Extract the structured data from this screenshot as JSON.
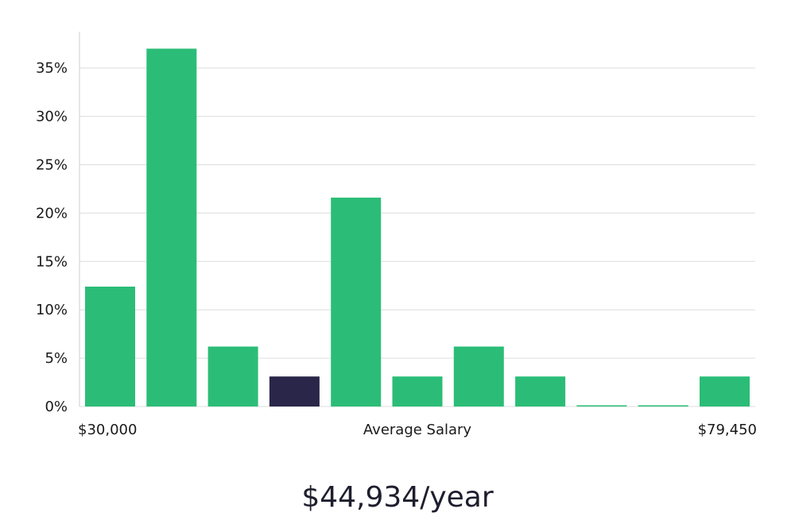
{
  "chart_data": {
    "type": "bar",
    "title": "",
    "xlabel": "Average Salary",
    "ylabel": "",
    "x_range_labels": {
      "min": "$30,000",
      "max": "$79,450"
    },
    "ylim": [
      0,
      37
    ],
    "yticks": [
      "0%",
      "5%",
      "10%",
      "15%",
      "20%",
      "25%",
      "30%",
      "35%"
    ],
    "ytick_values": [
      0,
      5,
      10,
      15,
      20,
      25,
      30,
      35
    ],
    "values": [
      12.4,
      37,
      6.2,
      3.1,
      21.6,
      3.1,
      6.2,
      3.1,
      0,
      0,
      3.1
    ],
    "highlight_index": 3,
    "colors": {
      "bar": "#2bbd77",
      "highlight": "#29264a",
      "grid": "#dddddd",
      "axis": "#cccccc"
    },
    "grid": true
  },
  "summary": {
    "salary": "$44,934/year"
  }
}
